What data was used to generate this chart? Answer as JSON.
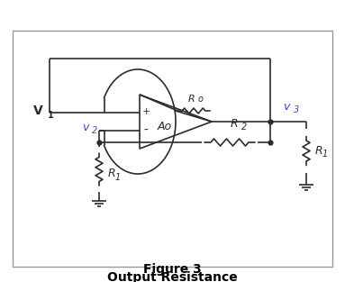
{
  "title_line1": "Figure 3",
  "title_line2": "Output Resistance",
  "label_V1": "V",
  "label_V1_sub": "1",
  "label_v2": "v",
  "label_v2_sub": "2",
  "label_v3": "v",
  "label_v3_sub": "3",
  "label_Ao": "Ao",
  "label_Ro": "R",
  "label_Ro_sub": "o",
  "label_R1_bottom": "R",
  "label_R1_bottom_sub": "1",
  "label_R1_right": "R",
  "label_R1_right_sub": "1",
  "label_R2": "R",
  "label_R2_sub": "2",
  "plus_sign": "+",
  "minus_sign": "-",
  "line_color": "#2b2b2b",
  "label_color_blue": "#4444bb",
  "label_color_black": "#1a1a1a",
  "bg_color": "#ffffff",
  "border_color": "#999999",
  "fig_width": 3.83,
  "fig_height": 3.13,
  "dpi": 100
}
